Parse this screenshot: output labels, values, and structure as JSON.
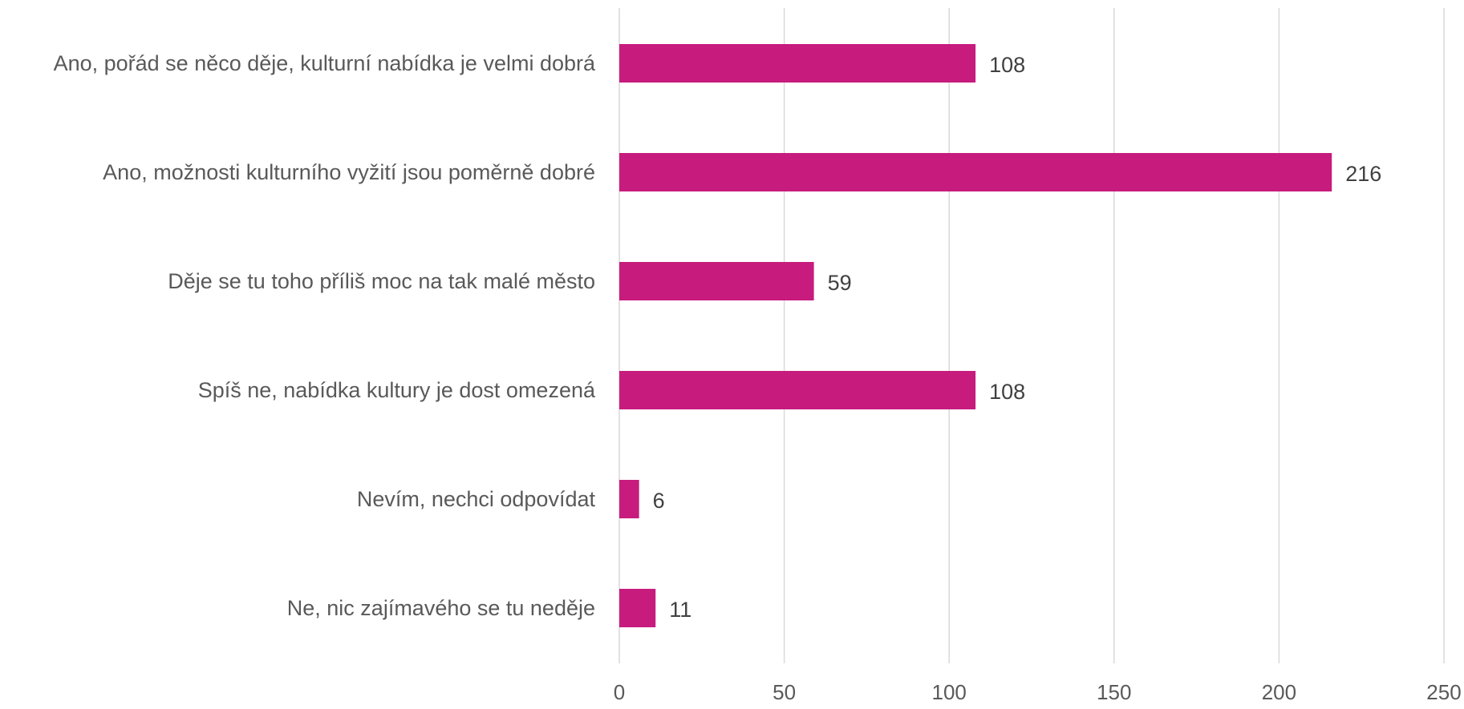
{
  "chart_data": {
    "type": "bar",
    "orientation": "horizontal",
    "categories": [
      "Ano, pořád se něco děje, kulturní nabídka je velmi dobrá",
      "Ano, možnosti kulturního vyžití jsou poměrně dobré",
      "Děje se tu toho příliš moc na tak malé město",
      "Spíš ne, nabídka kultury je dost omezená",
      "Nevím, nechci odpovídat",
      "Ne, nic zajímavého se tu neděje"
    ],
    "values": [
      108,
      216,
      59,
      108,
      6,
      11
    ],
    "data_labels": [
      "108",
      "216",
      "59",
      "108",
      "6",
      "11"
    ],
    "xticks": [
      0,
      50,
      100,
      150,
      200,
      250
    ],
    "xtick_labels": [
      "0",
      "50",
      "100",
      "150",
      "200",
      "250"
    ],
    "xlim": [
      0,
      250
    ],
    "grid": true,
    "legend": "none",
    "colors": {
      "bar": "#c71b7e"
    }
  }
}
